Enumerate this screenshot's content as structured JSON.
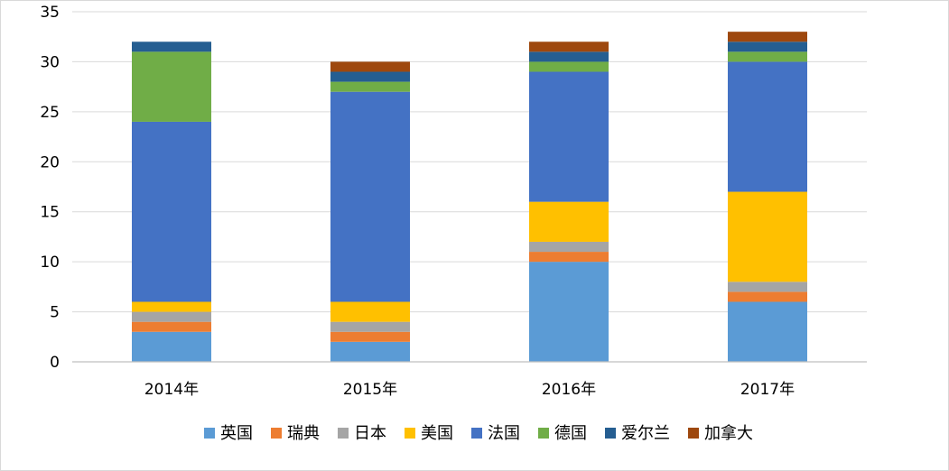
{
  "chart_data": {
    "type": "bar",
    "stacked": true,
    "title": "",
    "xlabel": "",
    "ylabel": "",
    "categories": [
      "2014年",
      "2015年",
      "2016年",
      "2017年"
    ],
    "ylim": [
      0,
      35
    ],
    "yticks": [
      0,
      5,
      10,
      15,
      20,
      25,
      30,
      35
    ],
    "grid": true,
    "legend_position": "bottom",
    "series": [
      {
        "name": "英国",
        "color": "#5B9BD5",
        "values": [
          3,
          2,
          10,
          6
        ]
      },
      {
        "name": "瑞典",
        "color": "#ED7D31",
        "values": [
          1,
          1,
          1,
          1
        ]
      },
      {
        "name": "日本",
        "color": "#A5A5A5",
        "values": [
          1,
          1,
          1,
          1
        ]
      },
      {
        "name": "美国",
        "color": "#FFC000",
        "values": [
          1,
          2,
          4,
          9
        ]
      },
      {
        "name": "法国",
        "color": "#4472C4",
        "values": [
          18,
          21,
          13,
          13
        ]
      },
      {
        "name": "德国",
        "color": "#70AD47",
        "values": [
          7,
          1,
          1,
          1
        ]
      },
      {
        "name": "爱尔兰",
        "color": "#255E91",
        "values": [
          1,
          1,
          1,
          1
        ]
      },
      {
        "name": "加拿大",
        "color": "#9E480E",
        "values": [
          0,
          1,
          1,
          1
        ]
      }
    ]
  }
}
